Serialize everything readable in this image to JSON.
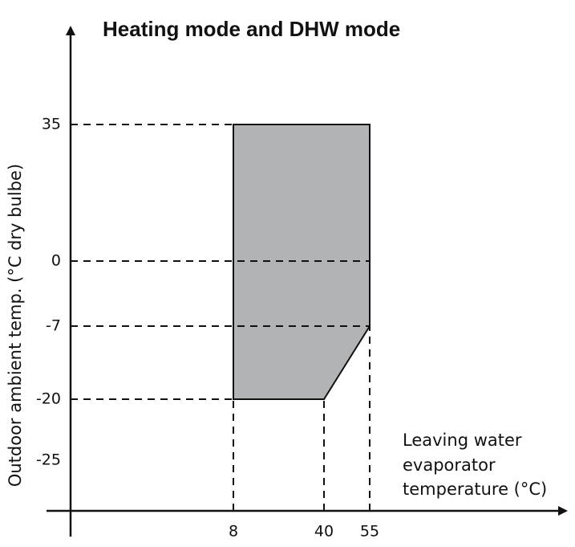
{
  "chart_data": {
    "type": "area",
    "title": "Heating mode and DHW mode",
    "y_label": "Outdoor ambient temp. (°C dry bulbe)",
    "x_label": [
      "Leaving water",
      "evaporator",
      "temperature (°C)"
    ],
    "x": [
      8,
      55,
      55,
      40,
      8
    ],
    "y": [
      35,
      35,
      -7,
      -20,
      -20
    ],
    "color": "#b2b3b5",
    "xticks": [
      8,
      40,
      55
    ],
    "yticks": [
      35,
      0,
      -7,
      -20,
      -25
    ]
  }
}
